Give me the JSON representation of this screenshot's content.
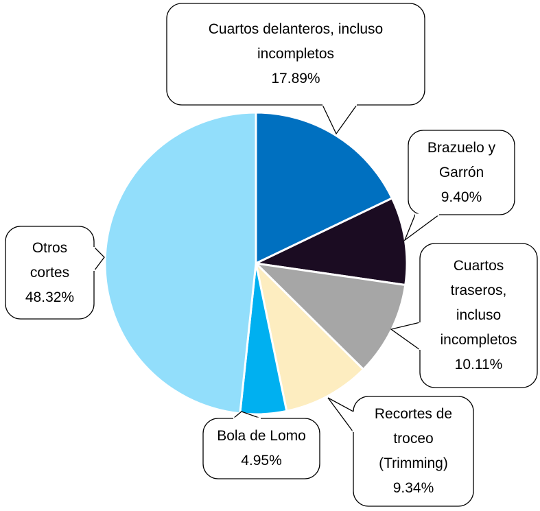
{
  "chart_data": {
    "type": "pie",
    "categories": [
      "Cuartos delanteros, incluso incompletos",
      "Brazuelo y Garrón",
      "Cuartos traseros, incluso incompletos",
      "Recortes de troceo (Trimming)",
      "Bola de Lomo",
      "Otros cortes"
    ],
    "values": [
      17.89,
      9.4,
      10.11,
      9.34,
      4.95,
      48.32
    ],
    "value_labels": [
      "17.89%",
      "9.40%",
      "10.11%",
      "9.34%",
      "4.95%",
      "48.32%"
    ],
    "colors": [
      "#0070c0",
      "#1b0c22",
      "#a6a6a6",
      "#fdedc0",
      "#00b0f0",
      "#92defb"
    ]
  }
}
